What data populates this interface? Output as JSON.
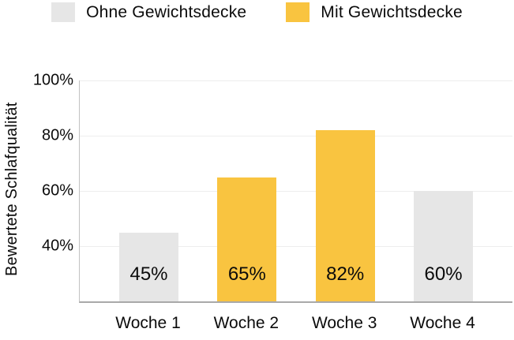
{
  "legend": {
    "items": [
      {
        "label": "Ohne Gewichtsdecke",
        "color": "#E6E6E6"
      },
      {
        "label": "Mit Gewichtsdecke",
        "color": "#F9C440"
      }
    ]
  },
  "chart_data": {
    "type": "bar",
    "title": "",
    "xlabel": "",
    "ylabel": "Bewertete Schlafqualität",
    "ylim": [
      20,
      100
    ],
    "grid": true,
    "legend_position": "top",
    "categories": [
      "Woche 1",
      "Woche 2",
      "Woche 3",
      "Woche 4"
    ],
    "yticks": [
      {
        "value": 100,
        "label": "100%"
      },
      {
        "value": 80,
        "label": "80%"
      },
      {
        "value": 60,
        "label": "60%"
      },
      {
        "value": 40,
        "label": "40%"
      }
    ],
    "series": [
      {
        "name": "Ohne Gewichtsdecke",
        "color": "#E6E6E6",
        "values": [
          45,
          null,
          null,
          60
        ]
      },
      {
        "name": "Mit Gewichtsdecke",
        "color": "#F9C440",
        "values": [
          null,
          65,
          82,
          null
        ]
      }
    ],
    "bars": [
      {
        "category": "Woche 1",
        "value": 45,
        "label": "45%",
        "series": "Ohne Gewichtsdecke",
        "color": "#E6E6E6"
      },
      {
        "category": "Woche 2",
        "value": 65,
        "label": "65%",
        "series": "Mit Gewichtsdecke",
        "color": "#F9C440"
      },
      {
        "category": "Woche 3",
        "value": 82,
        "label": "82%",
        "series": "Mit Gewichtsdecke",
        "color": "#F9C440"
      },
      {
        "category": "Woche 4",
        "value": 60,
        "label": "60%",
        "series": "Ohne Gewichtsdecke",
        "color": "#E6E6E6"
      }
    ],
    "axis_colors": {
      "gridline": "#EDEDED",
      "x_axis": "#A9A9A9",
      "y_axis": "#C2C2C2"
    }
  }
}
